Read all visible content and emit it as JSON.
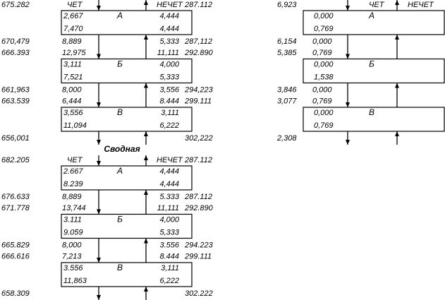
{
  "summary_title": "Сводная",
  "panels": [
    {
      "header": {
        "left": "675.282",
        "even": "ЧЕТ",
        "odd": "НЕЧЕТ",
        "right": "287.112"
      },
      "blocks": [
        {
          "name": "А",
          "even": [
            "2,667",
            "7,470"
          ],
          "odd": [
            "4,444",
            "4,444"
          ]
        },
        {
          "name": "Б",
          "even": [
            "3,111",
            "7,521"
          ],
          "odd": [
            "4,000",
            "5,333"
          ]
        },
        {
          "name": "В",
          "even": [
            "3,556",
            "11,094"
          ],
          "odd": [
            "3,111",
            "6,222"
          ]
        }
      ],
      "links": [
        {
          "left": [
            "670,479",
            "666.393"
          ],
          "even": [
            "8,889",
            "12,975"
          ],
          "odd": [
            "5,333",
            "11,111"
          ],
          "right": [
            "287,112",
            "292.890"
          ]
        },
        {
          "left": [
            "661,963",
            "663.539"
          ],
          "even": [
            "8,000",
            "6,444"
          ],
          "odd": [
            "3,556",
            "8.444"
          ],
          "right": [
            "294,223",
            "299.111"
          ]
        }
      ],
      "bottom": {
        "left": "656,001",
        "right": "302,222"
      }
    },
    {
      "header": {
        "left": "682.205",
        "even": "ЧЕТ",
        "odd": "НЕЧЕТ",
        "right": "287.112"
      },
      "blocks": [
        {
          "name": "А",
          "even": [
            "2.667",
            "8.239"
          ],
          "odd": [
            "4,444",
            "4,444"
          ]
        },
        {
          "name": "Б",
          "even": [
            "3.111",
            "9.059"
          ],
          "odd": [
            "4,000",
            "5,333"
          ]
        },
        {
          "name": "В",
          "even": [
            "3.556",
            "11,863"
          ],
          "odd": [
            "3,111",
            "6,222"
          ]
        }
      ],
      "links": [
        {
          "left": [
            "676.633",
            "671.778"
          ],
          "even": [
            "8,889",
            "13,744"
          ],
          "odd": [
            "5.333",
            "11,111"
          ],
          "right": [
            "287.112",
            "292.890"
          ]
        },
        {
          "left": [
            "665.829",
            "666.616"
          ],
          "even": [
            "8,000",
            "7,213"
          ],
          "odd": [
            "3.556",
            "8.444"
          ],
          "right": [
            "294.223",
            "299.111"
          ]
        }
      ],
      "bottom": {
        "left": "658.309",
        "right": "302.222"
      }
    },
    {
      "header": {
        "left": "6,923",
        "even": "ЧЕТ",
        "odd": "НЕЧЕТ"
      },
      "blocks": [
        {
          "name": "А",
          "even": [
            "0,000",
            "0,769"
          ]
        },
        {
          "name": "Б",
          "even": [
            "0,000",
            "1,538"
          ]
        },
        {
          "name": "В",
          "even": [
            "0,000",
            "0,769"
          ]
        }
      ],
      "links": [
        {
          "left": [
            "6,154",
            "5,385"
          ],
          "even": [
            "0,000",
            "0,769"
          ]
        },
        {
          "left": [
            "3,846",
            "3,077"
          ],
          "even": [
            "0,000",
            "0,769"
          ]
        }
      ],
      "bottom": {
        "left": "2,308"
      }
    }
  ]
}
